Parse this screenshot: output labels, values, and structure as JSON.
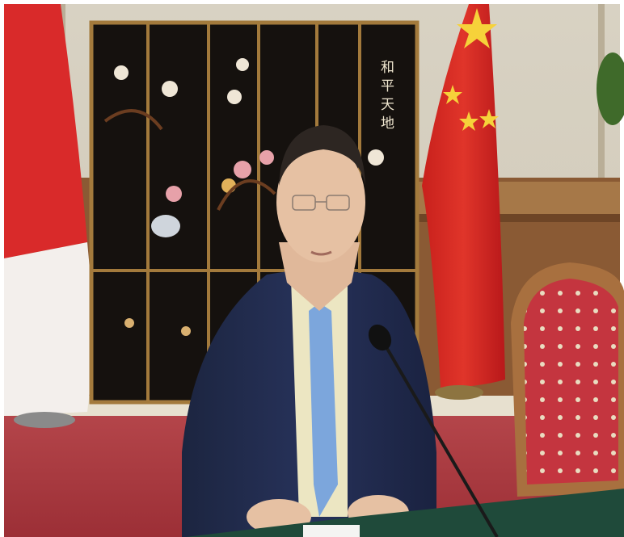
{
  "screen_inscription": "和平天地"
}
